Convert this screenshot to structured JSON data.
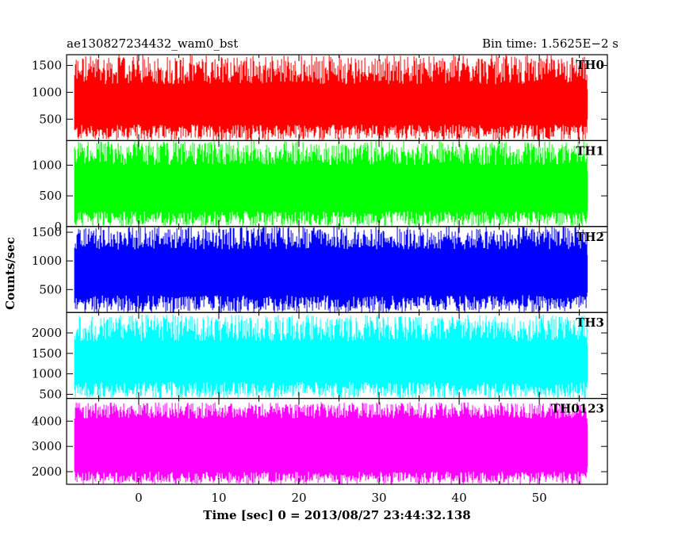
{
  "chart_data": {
    "type": "line",
    "title_left": "ae130827234432_wam0_bst",
    "title_right": "Bin time: 1.5625E−2 s",
    "xlabel": "Time [sec] 0 = 2013/08/27 23:44:32.138",
    "ylabel": "Counts/sec",
    "xlim": [
      -9,
      58.5
    ],
    "x_range": [
      -8,
      56
    ],
    "x_ticks": [
      "0",
      "10",
      "20",
      "30",
      "40",
      "50"
    ],
    "grid": false,
    "panels": [
      {
        "name": "TH0",
        "color": "#ff0000",
        "ylim": [
          100,
          1700
        ],
        "ticks": [
          "500",
          "1000",
          "1500"
        ],
        "tick_values": [
          500,
          1000,
          1500
        ],
        "low": [
          100,
          400
        ],
        "mid": [
          500,
          1050
        ],
        "high": [
          1150,
          1700
        ]
      },
      {
        "name": "TH1",
        "color": "#00ff00",
        "ylim": [
          0,
          1400
        ],
        "ticks": [
          "0",
          "500",
          "1000"
        ],
        "tick_values": [
          0,
          500,
          1000
        ],
        "low": [
          0,
          250
        ],
        "mid": [
          250,
          900
        ],
        "high": [
          1000,
          1400
        ]
      },
      {
        "name": "TH2",
        "color": "#0000ff",
        "ylim": [
          100,
          1600
        ],
        "ticks": [
          "500",
          "1000",
          "1500"
        ],
        "tick_values": [
          500,
          1000,
          1500
        ],
        "low": [
          100,
          400
        ],
        "mid": [
          450,
          1100
        ],
        "high": [
          1200,
          1600
        ]
      },
      {
        "name": "TH3",
        "color": "#00ffff",
        "ylim": [
          400,
          2500
        ],
        "ticks": [
          "500",
          "1000",
          "1500",
          "2000"
        ],
        "tick_values": [
          500,
          1000,
          1500,
          2000
        ],
        "low": [
          400,
          800
        ],
        "mid": [
          800,
          1700
        ],
        "high": [
          1800,
          2450
        ]
      },
      {
        "name": "TH0123",
        "color": "#ff00ff",
        "ylim": [
          1500,
          4900
        ],
        "ticks": [
          "2000",
          "3000",
          "4000"
        ],
        "tick_values": [
          2000,
          3000,
          4000
        ],
        "low": [
          1500,
          2000
        ],
        "mid": [
          2200,
          3900
        ],
        "high": [
          4100,
          4750
        ]
      }
    ]
  }
}
